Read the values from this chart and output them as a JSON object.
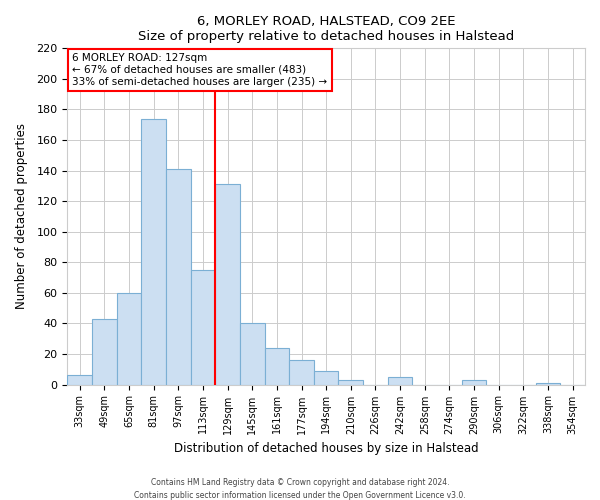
{
  "title": "6, MORLEY ROAD, HALSTEAD, CO9 2EE",
  "subtitle": "Size of property relative to detached houses in Halstead",
  "xlabel": "Distribution of detached houses by size in Halstead",
  "ylabel": "Number of detached properties",
  "footer_line1": "Contains HM Land Registry data © Crown copyright and database right 2024.",
  "footer_line2": "Contains public sector information licensed under the Open Government Licence v3.0.",
  "bar_labels": [
    "33sqm",
    "49sqm",
    "65sqm",
    "81sqm",
    "97sqm",
    "113sqm",
    "129sqm",
    "145sqm",
    "161sqm",
    "177sqm",
    "194sqm",
    "210sqm",
    "226sqm",
    "242sqm",
    "258sqm",
    "274sqm",
    "290sqm",
    "306sqm",
    "322sqm",
    "338sqm",
    "354sqm"
  ],
  "bar_values": [
    6,
    43,
    60,
    174,
    141,
    75,
    131,
    40,
    24,
    16,
    9,
    3,
    0,
    5,
    0,
    0,
    3,
    0,
    0,
    1,
    0
  ],
  "bar_color": "#ccdff2",
  "bar_edge_color": "#7bafd4",
  "vline_color": "red",
  "vline_index": 5.5,
  "annotation_title": "6 MORLEY ROAD: 127sqm",
  "annotation_line1": "← 67% of detached houses are smaller (483)",
  "annotation_line2": "33% of semi-detached houses are larger (235) →",
  "annotation_box_color": "white",
  "annotation_box_edge_color": "red",
  "ylim": [
    0,
    220
  ],
  "yticks": [
    0,
    20,
    40,
    60,
    80,
    100,
    120,
    140,
    160,
    180,
    200,
    220
  ],
  "figsize": [
    6.0,
    5.0
  ],
  "dpi": 100
}
